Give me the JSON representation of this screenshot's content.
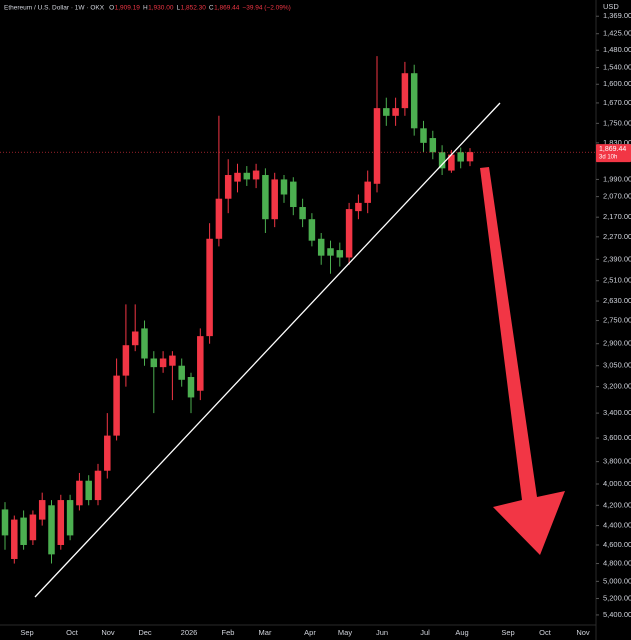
{
  "chart_data": {
    "type": "candlestick",
    "symbol": "Ethereum / U.S. Dollar · 1W · OKX",
    "ohlc_legend": [
      {
        "key": "O",
        "label": "1,909.19"
      },
      {
        "key": "H",
        "label": "1,930.00"
      },
      {
        "key": "L",
        "label": "1,852.30"
      },
      {
        "key": "C",
        "label": "1,869.44"
      }
    ],
    "change": "−39.94 (−2.09%)",
    "currency": "USD",
    "up_color": "#4caf50",
    "down_color": "#f23645",
    "log_scale": true,
    "y_inverted": true,
    "ylim": [
      1319,
      5526
    ],
    "yticks": [
      {
        "value": 1369,
        "label": "1,369.00"
      },
      {
        "value": 1425,
        "label": "1,425.00"
      },
      {
        "value": 1480,
        "label": "1,480.00"
      },
      {
        "value": 1540,
        "label": "1,540.00"
      },
      {
        "value": 1600,
        "label": "1,600.00"
      },
      {
        "value": 1670,
        "label": "1,670.00"
      },
      {
        "value": 1750,
        "label": "1,750.00"
      },
      {
        "value": 1830,
        "label": "1,830.00"
      },
      {
        "value": 1990,
        "label": "1,990.00"
      },
      {
        "value": 2070,
        "label": "2,070.00"
      },
      {
        "value": 2170,
        "label": "2,170.00"
      },
      {
        "value": 2270,
        "label": "2,270.00"
      },
      {
        "value": 2390,
        "label": "2,390.00"
      },
      {
        "value": 2510,
        "label": "2,510.00"
      },
      {
        "value": 2630,
        "label": "2,630.00"
      },
      {
        "value": 2750,
        "label": "2,750.00"
      },
      {
        "value": 2900,
        "label": "2,900.00"
      },
      {
        "value": 3050,
        "label": "3,050.00"
      },
      {
        "value": 3200,
        "label": "3,200.00"
      },
      {
        "value": 3400,
        "label": "3,400.00"
      },
      {
        "value": 3600,
        "label": "3,600.00"
      },
      {
        "value": 3800,
        "label": "3,800.00"
      },
      {
        "value": 4000,
        "label": "4,000.00"
      },
      {
        "value": 4200,
        "label": "4,200.00"
      },
      {
        "value": 4400,
        "label": "4,400.00"
      },
      {
        "value": 4600,
        "label": "4,600.00"
      },
      {
        "value": 4800,
        "label": "4,800.00"
      },
      {
        "value": 5000,
        "label": "5,000.00"
      },
      {
        "value": 5200,
        "label": "5,200.00"
      },
      {
        "value": 5400,
        "label": "5,400.00"
      }
    ],
    "x_labels": [
      "Sep",
      "Oct",
      "Nov",
      "Dec",
      "2026",
      "Feb",
      "Mar",
      "Apr",
      "May",
      "Jun",
      "Jul",
      "Aug",
      "Sep",
      "Oct",
      "Nov"
    ],
    "last_price": {
      "value": 1869.44,
      "label": "1,869.44"
    },
    "countdown": "3d 10h",
    "open": [
      4240,
      4750,
      4320,
      4550,
      4340,
      4200,
      4600,
      4150,
      4200,
      3970,
      4150,
      3880,
      3580,
      3120,
      2910,
      2800,
      3000,
      3060,
      3050,
      3050,
      3130,
      3230,
      2850,
      2280,
      2080,
      2000,
      1960,
      1990,
      1970,
      2180,
      1990,
      2000,
      2120,
      2180,
      2280,
      2330,
      2340,
      2380,
      2140,
      2100,
      2010,
      1690,
      1720,
      1690,
      1560,
      1770,
      1810,
      1870,
      1950,
      1870,
      1909.19
    ],
    "high": [
      4650,
      4800,
      4650,
      4600,
      4400,
      4800,
      4650,
      4550,
      4250,
      4200,
      4200,
      3950,
      3620,
      3200,
      2950,
      3050,
      3400,
      3100,
      3300,
      3200,
      3400,
      3300,
      2900,
      2320,
      2150,
      2050,
      2020,
      2030,
      2250,
      2220,
      2100,
      2160,
      2220,
      2320,
      2420,
      2470,
      2430,
      2420,
      2180,
      2150,
      2050,
      1760,
      1760,
      1720,
      1800,
      1870,
      1900,
      1970,
      1960,
      1940,
      1930
    ],
    "low": [
      4170,
      4300,
      4250,
      4250,
      4080,
      4150,
      4100,
      4100,
      3900,
      3920,
      3820,
      3400,
      3000,
      2650,
      2650,
      2750,
      2950,
      2950,
      2950,
      3000,
      3100,
      2800,
      2200,
      1720,
      1900,
      1920,
      1930,
      1920,
      1940,
      1960,
      1970,
      1980,
      2080,
      2150,
      2250,
      2290,
      2300,
      2100,
      2060,
      1950,
      1500,
      1650,
      1650,
      1520,
      1530,
      1740,
      1780,
      1840,
      1860,
      1850,
      1852.3
    ],
    "close": [
      4500,
      4340,
      4600,
      4290,
      4150,
      4700,
      4150,
      4500,
      3970,
      4150,
      3880,
      3580,
      3120,
      2910,
      2820,
      3000,
      3060,
      3000,
      2980,
      3150,
      3280,
      2850,
      2280,
      2080,
      1970,
      1960,
      1990,
      1950,
      2180,
      1990,
      2060,
      2120,
      2180,
      2290,
      2370,
      2370,
      2380,
      2130,
      2100,
      2000,
      1690,
      1720,
      1690,
      1560,
      1770,
      1830,
      1870,
      1940,
      1880,
      1910,
      1869.44
    ]
  }
}
